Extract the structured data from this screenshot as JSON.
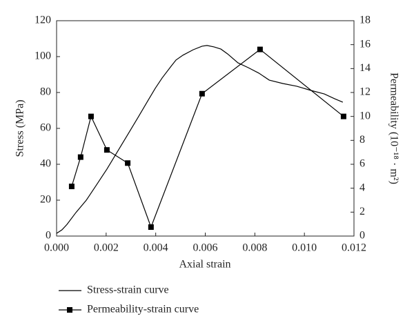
{
  "chart_data": {
    "type": "line",
    "xlabel": "Axial strain",
    "ylabel": "Stress (MPa)",
    "y2label": "Permeability (10⁻¹⁸ · m²)",
    "xlim": [
      0,
      0.012
    ],
    "xticks": [
      {
        "value": 0,
        "label": "0.000"
      },
      {
        "value": 0.002,
        "label": "0.002"
      },
      {
        "value": 0.004,
        "label": "0.004"
      },
      {
        "value": 0.006,
        "label": "0.006"
      },
      {
        "value": 0.008,
        "label": "0.008"
      },
      {
        "value": 0.01,
        "label": "0.010"
      },
      {
        "value": 0.012,
        "label": "0.012"
      }
    ],
    "ylim": [
      0,
      120
    ],
    "yticks": [
      0,
      20,
      40,
      60,
      80,
      100,
      120
    ],
    "y2lim": [
      0,
      18
    ],
    "y2ticks": [
      0,
      2,
      4,
      6,
      8,
      10,
      12,
      14,
      16,
      18
    ],
    "legend": "bottom-left",
    "series": [
      {
        "name": "Stress-strain curve",
        "color": "#000000",
        "marker": false,
        "x": [
          0,
          0.00022,
          0.00042,
          0.00078,
          0.0012,
          0.00161,
          0.00203,
          0.00245,
          0.00287,
          0.00329,
          0.0037,
          0.00398,
          0.00426,
          0.00462,
          0.00482,
          0.0051,
          0.00551,
          0.00587,
          0.00607,
          0.00635,
          0.00663,
          0.0069,
          0.00732,
          0.00774,
          0.00816,
          0.00858,
          0.00913,
          0.00969,
          0.01025,
          0.0108,
          0.01122,
          0.01155
        ],
        "values": [
          1.5,
          3.5,
          6.5,
          13.1,
          20,
          28.5,
          37.3,
          46.9,
          56.5,
          66.2,
          75.8,
          82.3,
          88.1,
          94.6,
          98.1,
          100.8,
          103.8,
          105.8,
          106.2,
          105.4,
          104.2,
          101.5,
          96.5,
          93.8,
          90.8,
          86.9,
          85,
          83.5,
          81.2,
          79.2,
          76.5,
          74.6
        ]
      },
      {
        "name": "Permeability-strain curve",
        "color": "#000000",
        "marker": true,
        "axis": "y2",
        "x": [
          0.00061,
          0.00097,
          0.00139,
          0.00203,
          0.00287,
          0.00381,
          0.00587,
          0.00821,
          0.01158
        ],
        "values": [
          4.15,
          6.6,
          10.0,
          7.2,
          6.1,
          0.75,
          11.9,
          15.6,
          10.0
        ]
      }
    ]
  }
}
